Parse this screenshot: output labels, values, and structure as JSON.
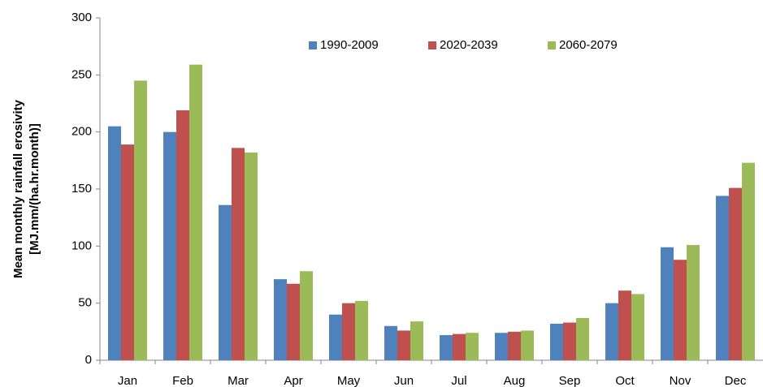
{
  "chart_data": {
    "type": "bar",
    "y_label": [
      "Mean monthly rainfall erosivity",
      "[MJ.mm/(ha.hr.month)]"
    ],
    "categories": [
      "Jan",
      "Feb",
      "Mar",
      "Apr",
      "May",
      "Jun",
      "Jul",
      "Aug",
      "Sep",
      "Oct",
      "Nov",
      "Dec"
    ],
    "series": [
      {
        "name": "1990-2009",
        "color": "#4f81bd",
        "values": [
          205,
          200,
          136,
          71,
          40,
          30,
          22,
          24,
          32,
          50,
          99,
          144
        ]
      },
      {
        "name": "2020-2039",
        "color": "#c0504d",
        "values": [
          189,
          219,
          186,
          67,
          50,
          26,
          23,
          25,
          33,
          61,
          88,
          151
        ]
      },
      {
        "name": "2060-2079",
        "color": "#9bbb59",
        "values": [
          245,
          259,
          182,
          78,
          52,
          34,
          24,
          26,
          37,
          58,
          101,
          173
        ]
      }
    ],
    "ylim": [
      0,
      300
    ],
    "yticks": [
      0,
      50,
      100,
      150,
      200,
      250,
      300
    ],
    "grid": false,
    "legend": "top"
  }
}
